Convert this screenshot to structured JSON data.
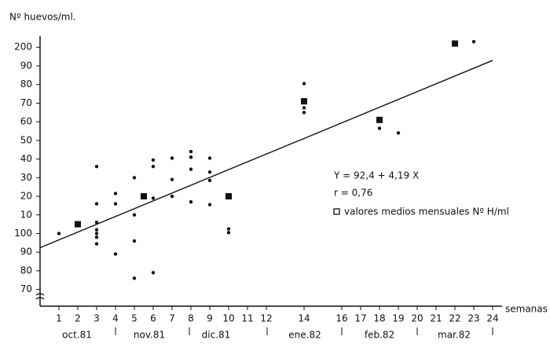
{
  "chart_data": {
    "type": "scatter",
    "y_label": "Nº huevos/ml.",
    "x_label": "semanas",
    "xlim": [
      0,
      24.5
    ],
    "ylim": [
      61,
      206
    ],
    "xticks": [
      1,
      2,
      3,
      4,
      5,
      6,
      7,
      8,
      9,
      10,
      11,
      12,
      14,
      16,
      17,
      18,
      19,
      20,
      21,
      22,
      23,
      24
    ],
    "yticks": [
      70,
      80,
      90,
      100,
      {
        "value": 110,
        "label": "10"
      },
      {
        "value": 120,
        "label": "20"
      },
      {
        "value": 130,
        "label": "30"
      },
      {
        "value": 140,
        "label": "40"
      },
      {
        "value": 150,
        "label": "50"
      },
      {
        "value": 160,
        "label": "60"
      },
      {
        "value": 170,
        "label": "70"
      },
      {
        "value": 180,
        "label": "80"
      },
      {
        "value": 190,
        "label": "90"
      },
      200
    ],
    "months": [
      "oct.81",
      "nov.81",
      "dic.81",
      "ene.82",
      "feb.82",
      "mar.82"
    ],
    "series": [
      {
        "marker": "dot",
        "color": "#111111",
        "x": [
          1,
          3,
          3,
          3,
          3,
          3,
          3,
          3,
          4,
          4,
          4,
          5,
          5,
          5,
          5,
          6,
          6,
          6,
          6,
          7,
          7,
          7,
          8,
          8,
          8,
          8,
          9,
          9,
          9,
          9,
          10,
          10,
          14,
          14,
          14,
          18,
          19,
          23
        ],
        "values": [
          100,
          136,
          116,
          106,
          102,
          100,
          98,
          94.5,
          121.5,
          116,
          89,
          130,
          110,
          96,
          76,
          139.5,
          136,
          119,
          79,
          140.5,
          129,
          120,
          144,
          141,
          134.5,
          117,
          140.5,
          133,
          128.5,
          115.5,
          102.5,
          100.5,
          180.5,
          167.5,
          165,
          156.5,
          154,
          203
        ]
      },
      {
        "name": "valores medios mensuales Nº H/ml",
        "marker": "square",
        "color": "#111111",
        "x": [
          2,
          5.5,
          10,
          14,
          18,
          22
        ],
        "values": [
          105,
          120,
          120,
          171,
          161,
          202
        ]
      }
    ],
    "fit": {
      "intercept": 92.4,
      "slope": 4.19,
      "equation": "Y = 92,4 + 4,19 X",
      "r": "r = 0,76"
    }
  }
}
